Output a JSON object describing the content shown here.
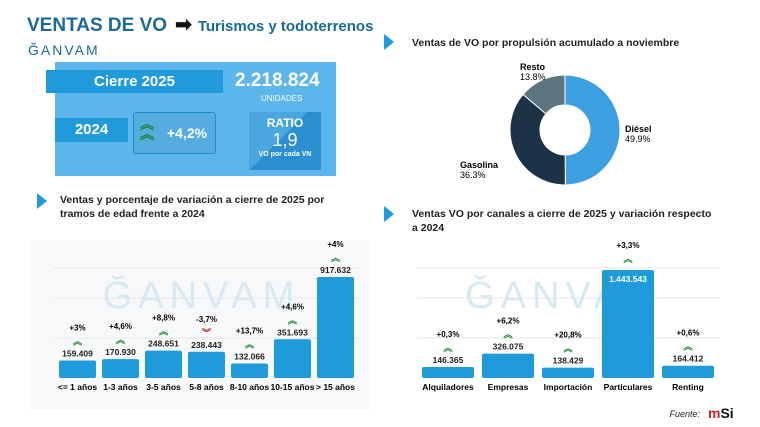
{
  "header": {
    "title": "VENTAS DE VO",
    "subtitle": "Turismos y todoterrenos",
    "logo": "ĞANVAM"
  },
  "kpi": {
    "cierre_label": "Cierre 2025",
    "total": "2.218.824",
    "units": "UNIDADES",
    "prev_year": "2024",
    "variation": "+4,2%",
    "ratio_label": "RATIO",
    "ratio_value": "1,9",
    "ratio_desc": "VO por cada VN"
  },
  "colors": {
    "accent": "#1f9bdb",
    "up": "#1a8a3c",
    "down": "#b3262b",
    "diesel": "#3b9fe0",
    "gasolina": "#1c3347",
    "resto": "#5e7480"
  },
  "watermark": "ĞANVAM",
  "footer": {
    "source": "Fuente:",
    "brand_a": "m",
    "brand_b": "Si"
  },
  "chart_data": [
    {
      "type": "pie",
      "donut": true,
      "title": "Ventas de VO por propulsión acumulado a noviembre",
      "slices": [
        {
          "label": "Diésel",
          "value": 49.9,
          "text": "49.9%"
        },
        {
          "label": "Gasolina",
          "value": 36.3,
          "text": "36.3%"
        },
        {
          "label": "Resto",
          "value": 13.8,
          "text": "13.8%"
        }
      ]
    },
    {
      "type": "bar",
      "title": "Ventas y porcentaje de variación a cierre de 2025 por tramos de edad frente a 2024",
      "categories": [
        "<= 1 años",
        "1-3 años",
        "3-5 años",
        "5-8 años",
        "8-10 años",
        "10-15 años",
        "> 15 años"
      ],
      "values": [
        159409,
        170930,
        248651,
        238443,
        132066,
        351693,
        917632
      ],
      "value_labels": [
        "159.409",
        "170.930",
        "248.651",
        "238.443",
        "132.066",
        "351.693",
        "917.632"
      ],
      "variation": [
        "+3%",
        "+4,6%",
        "+8,8%",
        "-3,7%",
        "+13,7%",
        "+4,6%",
        "+4%"
      ],
      "grid": true
    },
    {
      "type": "bar",
      "title": "Ventas VO por canales a cierre de 2025 y variación respecto a 2024",
      "categories": [
        "Alquiladores",
        "Empresas",
        "Importación",
        "Particulares",
        "Renting"
      ],
      "values": [
        146365,
        326075,
        138429,
        1443543,
        164412
      ],
      "value_labels": [
        "146.365",
        "326.075",
        "138.429",
        "1.443.543",
        "164.412"
      ],
      "variation": [
        "+0,3%",
        "+6,2%",
        "+20,8%",
        "+3,3%",
        "+0,6%"
      ],
      "grid": true
    }
  ]
}
